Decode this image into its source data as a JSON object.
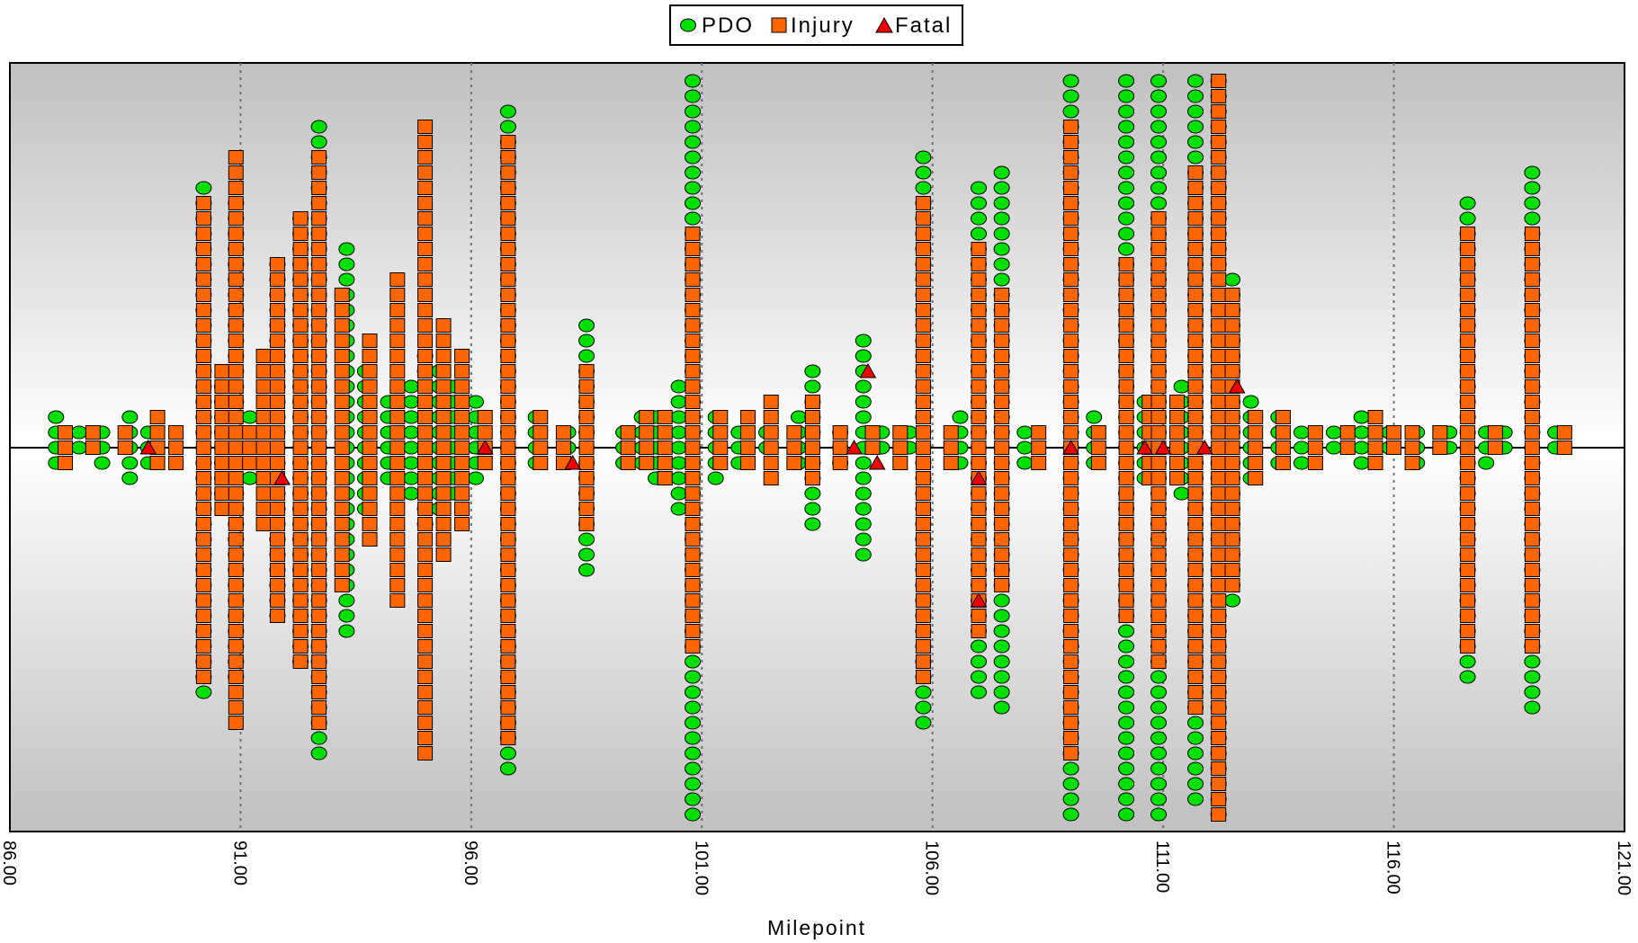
{
  "chart_data": {
    "type": "scatter",
    "title": "",
    "xlabel": "Milepoint",
    "ylabel": "",
    "xlim": [
      86.0,
      121.0
    ],
    "x_ticks": [
      "86.00",
      "91.00",
      "96.00",
      "101.00",
      "106.00",
      "111.00",
      "116.00",
      "121.00"
    ],
    "grid": "vertical dotted lines",
    "legend_position": "top-center",
    "stack_direction": "alternating above and below a central baseline",
    "colors": {
      "pdo": "#00e000",
      "injury": "#ff6600",
      "fatal": "#ee0000",
      "plot_edge": "#c0c0c0",
      "plot_center": "#ffffff"
    },
    "series": [
      {
        "name": "PDO",
        "marker": "circle",
        "stacks": [
          {
            "x": 87.0,
            "count": 4
          },
          {
            "x": 87.5,
            "count": 2
          },
          {
            "x": 88.0,
            "count": 3
          },
          {
            "x": 88.6,
            "count": 5
          },
          {
            "x": 89.0,
            "count": 3
          },
          {
            "x": 90.2,
            "count": 34
          },
          {
            "x": 90.6,
            "count": 8
          },
          {
            "x": 90.9,
            "count": 32
          },
          {
            "x": 91.2,
            "count": 5
          },
          {
            "x": 91.6,
            "count": 6
          },
          {
            "x": 91.8,
            "count": 24
          },
          {
            "x": 92.3,
            "count": 30
          },
          {
            "x": 92.7,
            "count": 42
          },
          {
            "x": 93.3,
            "count": 26
          },
          {
            "x": 93.7,
            "count": 10
          },
          {
            "x": 94.2,
            "count": 6
          },
          {
            "x": 94.7,
            "count": 8
          },
          {
            "x": 95.0,
            "count": 12
          },
          {
            "x": 95.3,
            "count": 10
          },
          {
            "x": 95.6,
            "count": 8
          },
          {
            "x": 96.1,
            "count": 6
          },
          {
            "x": 96.8,
            "count": 44
          },
          {
            "x": 97.4,
            "count": 4
          },
          {
            "x": 98.1,
            "count": 3
          },
          {
            "x": 98.5,
            "count": 17
          },
          {
            "x": 99.3,
            "count": 3
          },
          {
            "x": 99.7,
            "count": 4
          },
          {
            "x": 100.0,
            "count": 5
          },
          {
            "x": 100.5,
            "count": 9
          },
          {
            "x": 100.8,
            "count": 52
          },
          {
            "x": 101.3,
            "count": 5
          },
          {
            "x": 101.8,
            "count": 3
          },
          {
            "x": 102.4,
            "count": 2
          },
          {
            "x": 103.1,
            "count": 4
          },
          {
            "x": 103.4,
            "count": 11
          },
          {
            "x": 104.0,
            "count": 3
          },
          {
            "x": 104.5,
            "count": 15
          },
          {
            "x": 104.9,
            "count": 2
          },
          {
            "x": 105.5,
            "count": 2
          },
          {
            "x": 105.8,
            "count": 38
          },
          {
            "x": 106.6,
            "count": 4
          },
          {
            "x": 107.0,
            "count": 34
          },
          {
            "x": 107.5,
            "count": 36
          },
          {
            "x": 108.0,
            "count": 3
          },
          {
            "x": 109.0,
            "count": 54
          },
          {
            "x": 109.5,
            "count": 4
          },
          {
            "x": 110.2,
            "count": 54
          },
          {
            "x": 110.6,
            "count": 6
          },
          {
            "x": 110.9,
            "count": 50
          },
          {
            "x": 111.4,
            "count": 8
          },
          {
            "x": 111.7,
            "count": 48
          },
          {
            "x": 112.2,
            "count": 54
          },
          {
            "x": 112.5,
            "count": 22
          },
          {
            "x": 112.9,
            "count": 6
          },
          {
            "x": 113.5,
            "count": 4
          },
          {
            "x": 114.0,
            "count": 3
          },
          {
            "x": 114.7,
            "count": 2
          },
          {
            "x": 115.3,
            "count": 4
          },
          {
            "x": 115.9,
            "count": 2
          },
          {
            "x": 116.5,
            "count": 3
          },
          {
            "x": 117.2,
            "count": 2
          },
          {
            "x": 117.6,
            "count": 32
          },
          {
            "x": 118.0,
            "count": 3
          },
          {
            "x": 118.4,
            "count": 2
          },
          {
            "x": 119.0,
            "count": 36
          },
          {
            "x": 119.5,
            "count": 2
          }
        ]
      },
      {
        "name": "Injury",
        "marker": "square",
        "stacks": [
          {
            "x": 87.2,
            "count": 3
          },
          {
            "x": 87.8,
            "count": 2
          },
          {
            "x": 88.5,
            "count": 2
          },
          {
            "x": 89.2,
            "count": 4
          },
          {
            "x": 89.6,
            "count": 3
          },
          {
            "x": 90.2,
            "count": 32
          },
          {
            "x": 90.6,
            "count": 10
          },
          {
            "x": 90.9,
            "count": 38
          },
          {
            "x": 91.2,
            "count": 3
          },
          {
            "x": 91.5,
            "count": 12
          },
          {
            "x": 91.8,
            "count": 24
          },
          {
            "x": 92.3,
            "count": 30
          },
          {
            "x": 92.7,
            "count": 38
          },
          {
            "x": 93.2,
            "count": 20
          },
          {
            "x": 93.8,
            "count": 14
          },
          {
            "x": 94.4,
            "count": 22
          },
          {
            "x": 95.0,
            "count": 42
          },
          {
            "x": 95.4,
            "count": 16
          },
          {
            "x": 95.8,
            "count": 12
          },
          {
            "x": 96.3,
            "count": 4
          },
          {
            "x": 96.8,
            "count": 40
          },
          {
            "x": 97.5,
            "count": 4
          },
          {
            "x": 98.0,
            "count": 3
          },
          {
            "x": 98.5,
            "count": 11
          },
          {
            "x": 99.4,
            "count": 3
          },
          {
            "x": 99.8,
            "count": 4
          },
          {
            "x": 100.2,
            "count": 5
          },
          {
            "x": 100.8,
            "count": 28
          },
          {
            "x": 101.4,
            "count": 4
          },
          {
            "x": 102.0,
            "count": 4
          },
          {
            "x": 102.5,
            "count": 6
          },
          {
            "x": 103.0,
            "count": 3
          },
          {
            "x": 103.4,
            "count": 6
          },
          {
            "x": 104.0,
            "count": 3
          },
          {
            "x": 104.7,
            "count": 2
          },
          {
            "x": 105.3,
            "count": 3
          },
          {
            "x": 105.8,
            "count": 32
          },
          {
            "x": 106.4,
            "count": 3
          },
          {
            "x": 107.0,
            "count": 26
          },
          {
            "x": 107.5,
            "count": 20
          },
          {
            "x": 108.3,
            "count": 3
          },
          {
            "x": 109.0,
            "count": 42
          },
          {
            "x": 109.6,
            "count": 3
          },
          {
            "x": 110.2,
            "count": 24
          },
          {
            "x": 110.7,
            "count": 6
          },
          {
            "x": 110.9,
            "count": 30
          },
          {
            "x": 111.3,
            "count": 6
          },
          {
            "x": 111.7,
            "count": 36
          },
          {
            "x": 112.2,
            "count": 54
          },
          {
            "x": 112.5,
            "count": 20
          },
          {
            "x": 113.0,
            "count": 5
          },
          {
            "x": 113.6,
            "count": 4
          },
          {
            "x": 114.3,
            "count": 3
          },
          {
            "x": 115.0,
            "count": 2
          },
          {
            "x": 115.6,
            "count": 4
          },
          {
            "x": 116.0,
            "count": 2
          },
          {
            "x": 116.4,
            "count": 3
          },
          {
            "x": 117.0,
            "count": 2
          },
          {
            "x": 117.6,
            "count": 28
          },
          {
            "x": 118.2,
            "count": 2
          },
          {
            "x": 119.0,
            "count": 28
          },
          {
            "x": 119.7,
            "count": 2
          }
        ]
      },
      {
        "name": "Fatal",
        "marker": "triangle",
        "points": [
          {
            "x": 89.0,
            "level": 0
          },
          {
            "x": 91.9,
            "level": -2
          },
          {
            "x": 96.3,
            "level": 0
          },
          {
            "x": 98.2,
            "level": -1
          },
          {
            "x": 104.3,
            "level": 0
          },
          {
            "x": 104.6,
            "level": 5
          },
          {
            "x": 104.8,
            "level": -1
          },
          {
            "x": 107.0,
            "level": -2
          },
          {
            "x": 107.0,
            "level": -10
          },
          {
            "x": 109.0,
            "level": 0
          },
          {
            "x": 110.6,
            "level": 0
          },
          {
            "x": 111.0,
            "level": 0
          },
          {
            "x": 111.9,
            "level": 0
          },
          {
            "x": 112.6,
            "level": 4
          }
        ]
      }
    ]
  }
}
